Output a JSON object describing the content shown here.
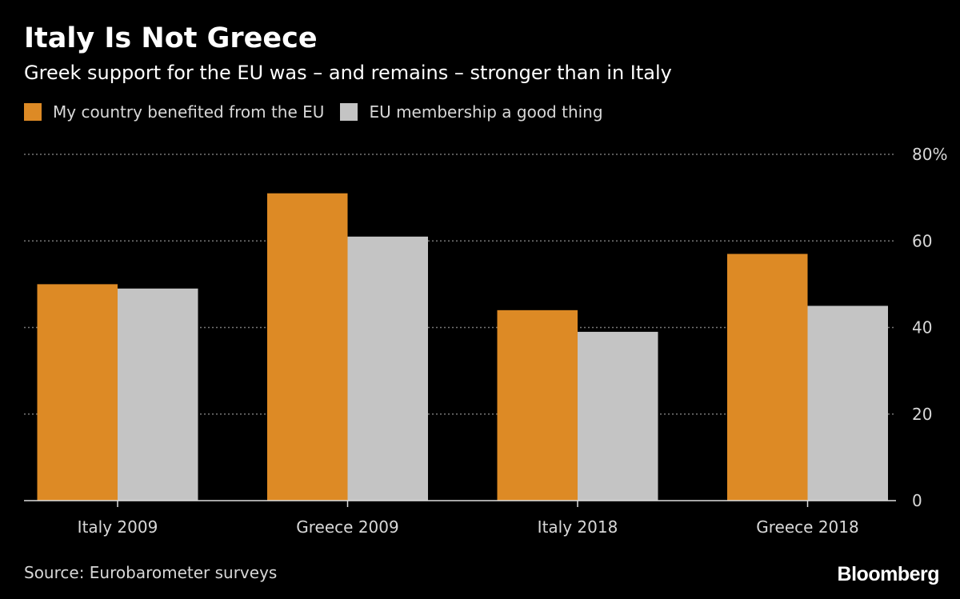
{
  "chart_data": {
    "type": "bar",
    "title": "Italy Is Not Greece",
    "subtitle": "Greek support for the EU was – and remains – stronger than in Italy",
    "categories": [
      "Italy 2009",
      "Greece 2009",
      "Italy 2018",
      "Greece 2018"
    ],
    "series": [
      {
        "name": "My country benefited from the EU",
        "values": [
          50,
          71,
          44,
          57
        ],
        "color": "#dd8a25"
      },
      {
        "name": "EU membership a good thing",
        "values": [
          49,
          61,
          39,
          45
        ],
        "color": "#c4c4c4"
      }
    ],
    "ylim": [
      0,
      80
    ],
    "yticks": [
      0,
      20,
      40,
      60,
      80
    ],
    "ytick_labels": [
      "0",
      "20",
      "40",
      "60",
      "80%"
    ],
    "yaxis_position": "right",
    "grid": true,
    "legend_position": "top-left",
    "xlabel": "",
    "ylabel": ""
  },
  "source": "Source: Eurobarometer surveys",
  "logo": "Bloomberg"
}
